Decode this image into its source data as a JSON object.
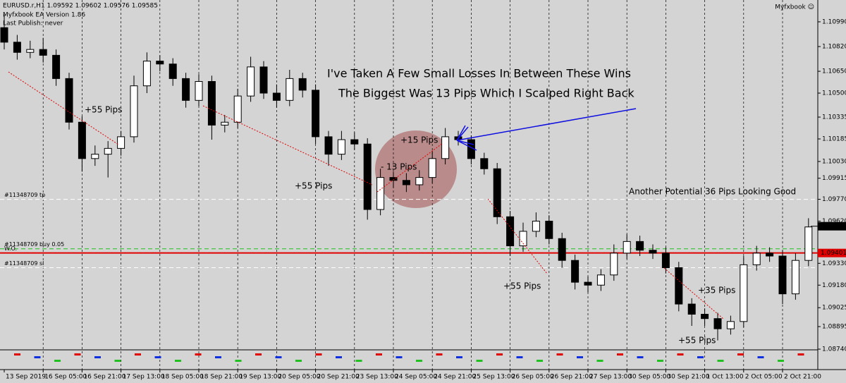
{
  "chart_data": {
    "type": "candlestick",
    "header": [
      "EURUSD.r,H1  1.09592 1.09602 1.09576 1.09585",
      "Myfxbook EA Version 1.86",
      "Last Publish: never"
    ],
    "brand": "Myfxbook ☺",
    "categories": [
      "13 Sep 2019",
      null,
      null,
      "16 Sep 05:00",
      null,
      null,
      "16 Sep 21:00",
      null,
      null,
      "17 Sep 13:00",
      null,
      null,
      "18 Sep 05:00",
      null,
      null,
      "18 Sep 21:00",
      null,
      null,
      "19 Sep 13:00",
      null,
      null,
      "20 Sep 05:00",
      null,
      null,
      "20 Sep 21:00",
      null,
      null,
      "23 Sep 13:00",
      null,
      null,
      "24 Sep 05:00",
      null,
      null,
      "24 Sep 21:00",
      null,
      null,
      "25 Sep 13:00",
      null,
      null,
      "26 Sep 05:00",
      null,
      null,
      "26 Sep 21:00",
      null,
      null,
      "27 Sep 13:00",
      null,
      null,
      "30 Sep 05:00",
      null,
      null,
      "30 Sep 21:00",
      null,
      null,
      "1 Oct 13:00",
      null,
      null,
      "2 Oct 05:00",
      null,
      null,
      "2 Oct 21:00",
      null,
      null
    ],
    "open": [
      1.1095,
      1.1085,
      1.1078,
      1.108,
      1.1076,
      1.106,
      1.103,
      1.1005,
      1.1008,
      1.1012,
      1.102,
      1.1055,
      1.1072,
      1.107,
      1.106,
      1.1045,
      1.1058,
      1.1028,
      1.103,
      1.1048,
      1.1068,
      1.105,
      1.1045,
      1.106,
      1.1052,
      1.102,
      1.1008,
      1.1018,
      1.1015,
      1.097,
      1.0992,
      1.099,
      1.0987,
      1.0992,
      1.1005,
      1.102,
      1.1018,
      1.1005,
      1.0998,
      1.0965,
      1.0945,
      1.0955,
      1.0962,
      1.095,
      1.0935,
      1.092,
      1.0918,
      1.0925,
      1.094,
      1.0948,
      1.0942,
      1.094,
      1.093,
      1.0905,
      1.0898,
      1.0895,
      1.0888,
      1.0893,
      1.0932,
      1.094,
      1.0938,
      1.0912,
      1.0935
    ],
    "high": [
      1.1104,
      1.109,
      1.1086,
      1.1088,
      1.108,
      1.1064,
      1.1034,
      1.1014,
      1.1017,
      1.1024,
      1.1062,
      1.1078,
      1.1076,
      1.1074,
      1.1064,
      1.1063,
      1.1062,
      1.1035,
      1.1053,
      1.1075,
      1.1072,
      1.1056,
      1.1066,
      1.1064,
      1.1056,
      1.1024,
      1.1024,
      1.1023,
      1.1019,
      1.0998,
      1.0996,
      1.0995,
      1.0997,
      1.101,
      1.1026,
      1.1024,
      1.1021,
      1.1009,
      1.1002,
      1.0969,
      1.0961,
      1.0968,
      1.0966,
      1.0954,
      1.0939,
      1.0924,
      1.0929,
      1.0946,
      1.0953,
      1.0952,
      1.0946,
      1.0944,
      1.0934,
      1.0909,
      1.0902,
      1.0899,
      1.0897,
      1.0938,
      1.0945,
      1.0944,
      1.0942,
      1.094,
      1.0964
    ],
    "low": [
      1.108,
      1.1073,
      1.1074,
      1.1071,
      1.1055,
      1.1025,
      1.0996,
      1.1,
      1.0992,
      1.1007,
      1.1016,
      1.105,
      1.1065,
      1.1055,
      1.104,
      1.1041,
      1.1018,
      1.1023,
      1.1026,
      1.1044,
      1.1046,
      1.104,
      1.1041,
      1.1047,
      1.1015,
      1.1,
      1.1004,
      1.1011,
      1.0963,
      1.0966,
      1.0985,
      1.0982,
      1.0983,
      1.0988,
      1.1001,
      1.1014,
      1.1001,
      1.0994,
      1.096,
      1.0938,
      1.0941,
      1.0951,
      1.0946,
      1.093,
      1.0915,
      1.0913,
      1.0914,
      1.0921,
      1.0936,
      1.0938,
      1.0936,
      1.0926,
      1.09,
      1.089,
      1.089,
      1.088,
      1.0884,
      1.0889,
      1.0928,
      1.0934,
      1.0905,
      1.0908,
      1.0931
    ],
    "close": [
      1.1085,
      1.1078,
      1.108,
      1.1076,
      1.106,
      1.103,
      1.1005,
      1.1008,
      1.1012,
      1.102,
      1.1055,
      1.1072,
      1.107,
      1.106,
      1.1045,
      1.1058,
      1.1028,
      1.103,
      1.1048,
      1.1068,
      1.105,
      1.1045,
      1.106,
      1.1052,
      1.102,
      1.1008,
      1.1018,
      1.1015,
      1.097,
      1.0992,
      1.099,
      1.0987,
      1.0992,
      1.1005,
      1.102,
      1.1018,
      1.1005,
      1.0998,
      1.0965,
      1.0945,
      1.0955,
      1.0962,
      1.095,
      1.0935,
      1.092,
      1.0918,
      1.0925,
      1.094,
      1.0948,
      1.0942,
      1.094,
      1.093,
      1.0905,
      1.0898,
      1.0895,
      1.0888,
      1.0893,
      1.0932,
      1.094,
      1.0938,
      1.0912,
      1.0935,
      1.0958
    ],
    "ylim": [
      1.0874,
      1.1114
    ],
    "yticks": [
      {
        "value": 1.1099,
        "label": "1.10990"
      },
      {
        "value": 1.1082,
        "label": "1.10820"
      },
      {
        "value": 1.1065,
        "label": "1.10650"
      },
      {
        "value": 1.105,
        "label": "1.10500"
      },
      {
        "value": 1.10335,
        "label": "1.10335"
      },
      {
        "value": 1.10185,
        "label": "1.10185"
      },
      {
        "value": 1.1003,
        "label": "1.10030"
      },
      {
        "value": 1.09915,
        "label": "1.09915"
      },
      {
        "value": 1.0977,
        "label": "1.09770"
      },
      {
        "value": 1.0962,
        "label": "1.09620"
      },
      {
        "value": 1.0933,
        "label": "1.09330"
      },
      {
        "value": 1.0918,
        "label": "1.09180"
      },
      {
        "value": 1.09025,
        "label": "1.09025"
      },
      {
        "value": 1.08895,
        "label": "1.08895"
      },
      {
        "value": 1.0874,
        "label": "1.08740"
      }
    ],
    "levels": [
      {
        "name": "#11348709 tp",
        "value": 1.0977,
        "color": "#ffffff",
        "dash": true
      },
      {
        "name": "#11348709 buy 0.05",
        "value": 1.0943,
        "color": "#22c022",
        "dash": true
      },
      {
        "name": "#11348709 sl",
        "value": 1.093,
        "color": "#ffffff",
        "dash": true
      },
      {
        "name": "W.O.",
        "value": 1.09401,
        "color": "#e00000",
        "dash": false,
        "label": "1.09401"
      }
    ],
    "last_price": {
      "value": 1.09585,
      "label": "1.09585"
    },
    "annotations": [
      "+55 Pips",
      "+55 Pips",
      "+15 Pips",
      "- 13 Pips",
      "+55 Pips",
      "+35 Pips",
      "+55 Pips",
      "Another Potential 36 Pips Looking Good",
      "I've Taken A Few Small Losses In Between These Wins",
      "The Biggest Was 13 Pips Which I Scalped Right Back"
    ]
  }
}
